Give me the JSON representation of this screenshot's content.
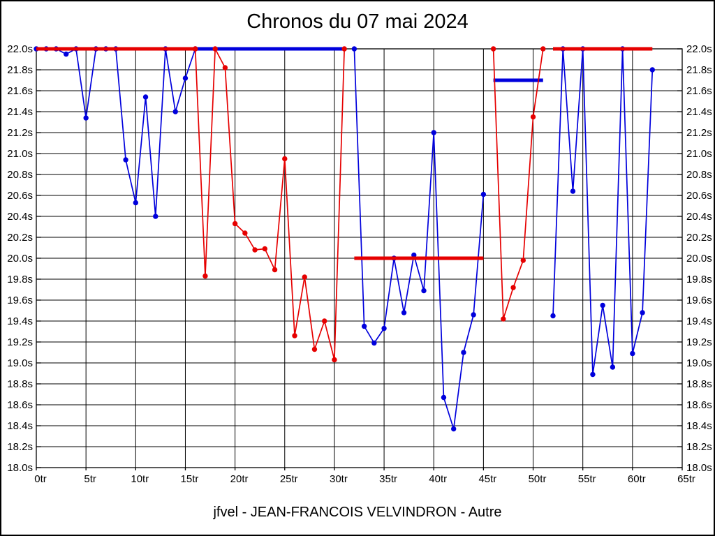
{
  "window": {
    "background": "#ffffff",
    "border_color": "#000000"
  },
  "header": {
    "title": "Chronos du 07 mai 2024"
  },
  "footer": {
    "subtitle": "jfvel - JEAN-FRANCOIS VELVINDRON - Autre"
  },
  "chart_data": {
    "type": "line",
    "title": "Chronos du 07 mai 2024",
    "subtitle": "jfvel - JEAN-FRANCOIS VELVINDRON - Autre",
    "xlabel": "",
    "ylabel": "",
    "x_unit": "tr",
    "y_unit": "s",
    "xlim": [
      0,
      65
    ],
    "ylim": [
      18.0,
      22.0
    ],
    "grid": true,
    "legend_position": "none",
    "x_tick_values": [
      0,
      5,
      10,
      15,
      20,
      25,
      30,
      35,
      40,
      45,
      50,
      55,
      60,
      65
    ],
    "x_tick_labels": [
      "0tr",
      "5tr",
      "10tr",
      "15tr",
      "20tr",
      "25tr",
      "30tr",
      "35tr",
      "40tr",
      "45tr",
      "50tr",
      "55tr",
      "60tr",
      "65tr"
    ],
    "y_tick_values": [
      22.0,
      21.8,
      21.6,
      21.4,
      21.2,
      21.0,
      20.8,
      20.6,
      20.4,
      20.2,
      20.0,
      19.8,
      19.6,
      19.4,
      19.2,
      19.0,
      18.8,
      18.6,
      18.4,
      18.2,
      18.0
    ],
    "y_tick_labels": [
      "22.0s",
      "21.8s",
      "21.6s",
      "21.4s",
      "21.2s",
      "21.0s",
      "20.8s",
      "20.6s",
      "20.4s",
      "20.2s",
      "20.0s",
      "19.8s",
      "19.6s",
      "19.4s",
      "19.2s",
      "19.0s",
      "18.8s",
      "18.6s",
      "18.4s",
      "18.2s",
      "18.0s"
    ],
    "series": [
      {
        "name": "blue-series",
        "color": "#0000dc",
        "segments": [
          {
            "thick": false,
            "markers": true,
            "pts": [
              [
                0,
                22.0
              ],
              [
                1,
                22.0
              ],
              [
                2,
                22.0
              ],
              [
                3,
                21.95
              ],
              [
                4,
                22.0
              ],
              [
                5,
                21.34
              ],
              [
                6,
                22.0
              ],
              [
                7,
                22.0
              ],
              [
                8,
                22.0
              ],
              [
                9,
                20.94
              ],
              [
                10,
                20.53
              ],
              [
                11,
                21.54
              ],
              [
                12,
                20.4
              ],
              [
                13,
                22.0
              ],
              [
                14,
                21.4
              ],
              [
                15,
                21.72
              ],
              [
                16,
                22.0
              ]
            ]
          },
          {
            "thick": true,
            "markers": false,
            "pts": [
              [
                16,
                22.0
              ],
              [
                31,
                22.0
              ]
            ]
          },
          {
            "thick": false,
            "markers": true,
            "pts": [
              [
                32,
                22.0
              ],
              [
                33,
                19.35
              ],
              [
                34,
                19.19
              ],
              [
                35,
                19.33
              ],
              [
                36,
                20.0
              ],
              [
                37,
                19.48
              ],
              [
                38,
                20.03
              ],
              [
                39,
                19.69
              ],
              [
                40,
                21.2
              ],
              [
                41,
                18.67
              ],
              [
                42,
                18.37
              ],
              [
                43,
                19.1
              ],
              [
                44,
                19.46
              ],
              [
                45,
                20.61
              ]
            ]
          },
          {
            "thick": true,
            "markers": false,
            "pts": [
              [
                46,
                21.7
              ],
              [
                51,
                21.7
              ]
            ]
          },
          {
            "thick": false,
            "markers": true,
            "pts": [
              [
                52,
                19.45
              ],
              [
                53,
                22.0
              ],
              [
                54,
                20.64
              ],
              [
                55,
                22.0
              ],
              [
                56,
                18.89
              ],
              [
                57,
                19.55
              ],
              [
                58,
                18.96
              ],
              [
                59,
                22.0
              ],
              [
                60,
                19.09
              ],
              [
                61,
                19.48
              ],
              [
                62,
                21.8
              ]
            ]
          }
        ]
      },
      {
        "name": "red-series",
        "color": "#e60000",
        "segments": [
          {
            "thick": true,
            "markers": false,
            "pts": [
              [
                0,
                22.0
              ],
              [
                16,
                22.0
              ]
            ]
          },
          {
            "thick": false,
            "markers": true,
            "pts": [
              [
                16,
                22.0
              ],
              [
                17,
                19.83
              ],
              [
                18,
                22.0
              ],
              [
                19,
                21.82
              ],
              [
                20,
                20.33
              ],
              [
                21,
                20.24
              ],
              [
                22,
                20.08
              ],
              [
                23,
                20.09
              ],
              [
                24,
                19.89
              ],
              [
                25,
                20.95
              ],
              [
                26,
                19.26
              ],
              [
                27,
                19.82
              ],
              [
                28,
                19.13
              ],
              [
                29,
                19.4
              ],
              [
                30,
                19.03
              ],
              [
                31,
                22.0
              ]
            ]
          },
          {
            "thick": true,
            "markers": false,
            "pts": [
              [
                32,
                20.0
              ],
              [
                45,
                20.0
              ]
            ]
          },
          {
            "thick": false,
            "markers": true,
            "pts": [
              [
                46,
                22.0
              ],
              [
                47,
                19.42
              ],
              [
                48,
                19.72
              ],
              [
                49,
                19.98
              ],
              [
                50,
                21.35
              ],
              [
                51,
                22.0
              ]
            ]
          },
          {
            "thick": true,
            "markers": false,
            "pts": [
              [
                52,
                22.0
              ],
              [
                62,
                22.0
              ]
            ]
          }
        ]
      }
    ]
  }
}
